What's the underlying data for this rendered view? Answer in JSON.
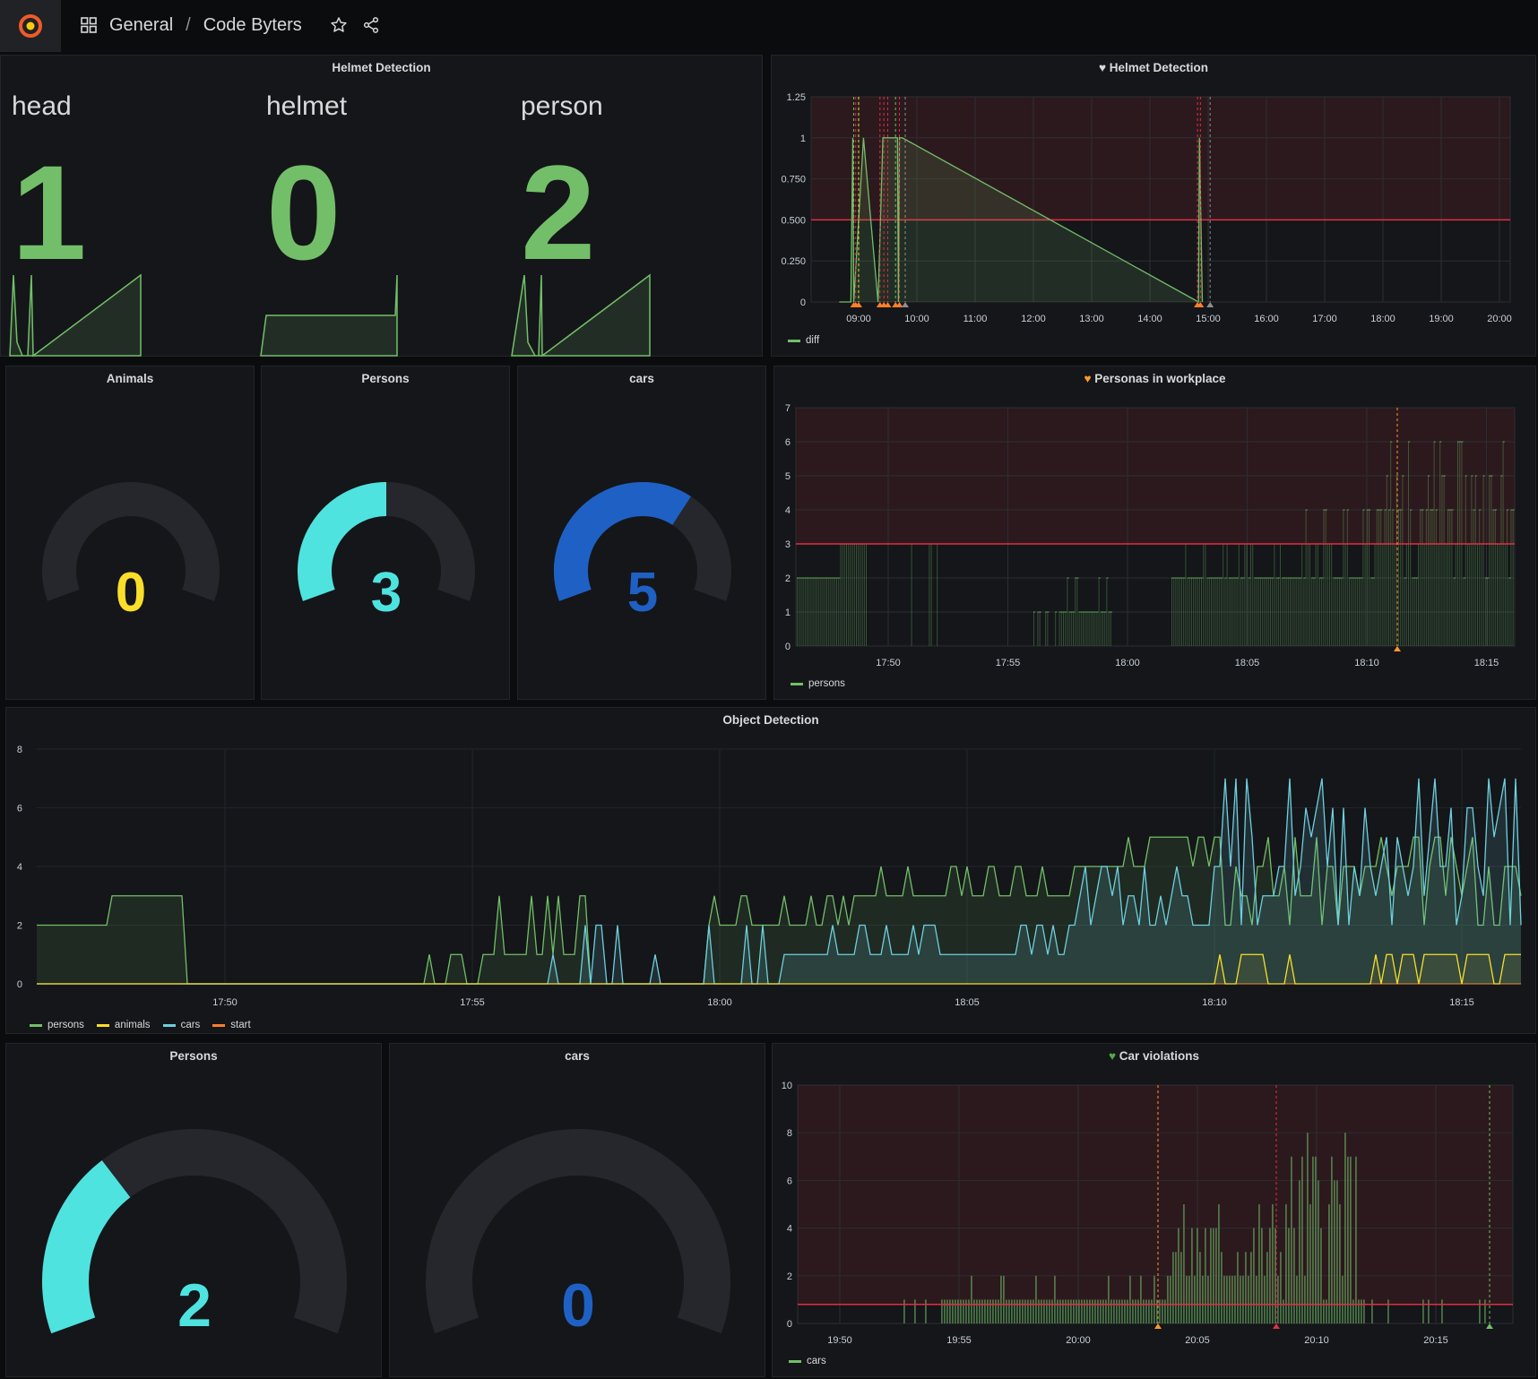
{
  "header": {
    "breadcrumb_root": "General",
    "breadcrumb_separator": "/",
    "dashboard_title": "Code Byters"
  },
  "colors": {
    "green": "#73bf69",
    "yellow": "#fade2a",
    "cyan": "#4fe3e0",
    "blue": "#1f60c4",
    "red": "#e02f44",
    "orange": "#ff9830",
    "grafana_orange": "#f05a28"
  },
  "helmet_stat": {
    "title": "Helmet Detection",
    "items": [
      {
        "label": "head",
        "value": "1"
      },
      {
        "label": "helmet",
        "value": "0"
      },
      {
        "label": "person",
        "value": "2"
      }
    ]
  },
  "helmet_graph": {
    "title": "Helmet Detection",
    "title_icon": "heart-icon",
    "legend": [
      "diff"
    ],
    "chart_data": {
      "type": "line",
      "x_ticks": [
        "09:00",
        "10:00",
        "11:00",
        "12:00",
        "13:00",
        "14:00",
        "15:00",
        "16:00",
        "17:00",
        "18:00",
        "19:00",
        "20:00"
      ],
      "y_ticks": [
        "0",
        "0.250",
        "0.500",
        "0.750",
        "1",
        "1.25"
      ],
      "ylim": [
        0,
        1.25
      ],
      "threshold": 0.5,
      "series": [
        {
          "name": "diff",
          "points": [
            [
              "08:40",
              0
            ],
            [
              "08:52",
              0
            ],
            [
              "08:54",
              1
            ],
            [
              "08:55",
              0
            ],
            [
              "09:05",
              1
            ],
            [
              "09:20",
              0
            ],
            [
              "09:25",
              1
            ],
            [
              "09:40",
              1
            ],
            [
              "09:41",
              0
            ],
            [
              "09:42",
              1
            ],
            [
              "09:45",
              1
            ],
            [
              "14:50",
              0
            ],
            [
              "14:51",
              1
            ],
            [
              "14:54",
              0
            ]
          ]
        }
      ]
    }
  },
  "gauges_row": [
    {
      "title": "Animals",
      "value": "0",
      "color": "#fade2a",
      "fraction": 0
    },
    {
      "title": "Persons",
      "value": "3",
      "color": "#4fe3e0",
      "fraction": 0.5
    },
    {
      "title": "cars",
      "value": "5",
      "color": "#1f60c4",
      "fraction": 0.65
    }
  ],
  "personas_graph": {
    "title": "Personas in workplace",
    "title_icon": "heart-icon",
    "legend": [
      "persons"
    ],
    "chart_data": {
      "type": "bar",
      "x_ticks": [
        "17:50",
        "17:55",
        "18:00",
        "18:05",
        "18:10",
        "18:15"
      ],
      "y_ticks": [
        "0",
        "1",
        "2",
        "3",
        "4",
        "5",
        "6",
        "7"
      ],
      "ylim": [
        0,
        7
      ],
      "threshold": 3
    }
  },
  "object_detection": {
    "title": "Object Detection",
    "legend": [
      "persons",
      "animals",
      "cars",
      "start"
    ],
    "chart_data": {
      "type": "line",
      "x_ticks": [
        "17:50",
        "17:55",
        "18:00",
        "18:05",
        "18:10",
        "18:15"
      ],
      "y_ticks": [
        "0",
        "2",
        "4",
        "6",
        "8"
      ],
      "ylim": [
        0,
        8
      ]
    }
  },
  "gauges_bottom": [
    {
      "title": "Persons",
      "value": "2",
      "color": "#4fe3e0",
      "fraction": 0.33
    },
    {
      "title": "cars",
      "value": "0",
      "color": "#1f60c4",
      "fraction": 0
    }
  ],
  "car_violations": {
    "title": "Car violations",
    "title_icon": "heart-icon",
    "legend": [
      "cars"
    ],
    "chart_data": {
      "type": "bar",
      "x_ticks": [
        "19:50",
        "19:55",
        "20:00",
        "20:05",
        "20:10",
        "20:15"
      ],
      "y_ticks": [
        "0",
        "2",
        "4",
        "6",
        "8",
        "10"
      ],
      "ylim": [
        0,
        10
      ],
      "threshold": 0.8
    }
  }
}
